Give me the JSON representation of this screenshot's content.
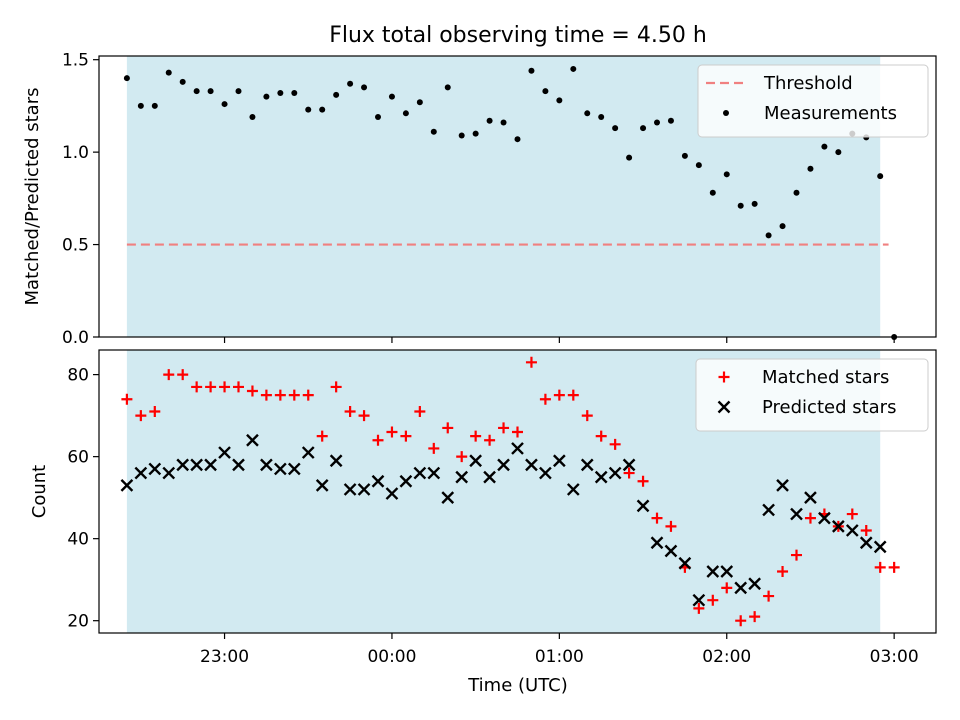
{
  "chart_data": {
    "title": "Flux total observing time = 4.50 h",
    "xlabel": "Time (UTC)",
    "x_unit": "UTC time (HH:MM, night of observation; times after midnight shown as 24:xx)",
    "x_ticks": [
      "23:00",
      "00:00",
      "01:00",
      "02:00",
      "03:00"
    ],
    "x_tick_values": [
      "23:00",
      "24:00",
      "25:00",
      "26:00",
      "27:00"
    ],
    "shaded_span": {
      "start": "22:25",
      "end": "26:55",
      "color": "#add8e6"
    },
    "panels": [
      {
        "type": "scatter",
        "ylabel": "Matched/Predicted stars",
        "ylim": [
          0,
          1.52
        ],
        "yticks": [
          0.0,
          0.5,
          1.0,
          1.5
        ],
        "threshold": {
          "name": "Threshold",
          "value": 0.5,
          "x_range": [
            "22:25",
            "26:58"
          ],
          "color": "#f08080"
        },
        "legend": {
          "position": "top-right",
          "entries": [
            "Threshold",
            "Measurements"
          ]
        },
        "series": [
          {
            "name": "Measurements",
            "color": "#000000",
            "marker": "dot",
            "points": [
              [
                "22:25",
                1.4
              ],
              [
                "22:30",
                1.25
              ],
              [
                "22:35",
                1.25
              ],
              [
                "22:40",
                1.43
              ],
              [
                "22:45",
                1.38
              ],
              [
                "22:50",
                1.33
              ],
              [
                "22:55",
                1.33
              ],
              [
                "23:00",
                1.26
              ],
              [
                "23:05",
                1.33
              ],
              [
                "23:10",
                1.19
              ],
              [
                "23:15",
                1.3
              ],
              [
                "23:20",
                1.32
              ],
              [
                "23:25",
                1.32
              ],
              [
                "23:30",
                1.23
              ],
              [
                "23:35",
                1.23
              ],
              [
                "23:40",
                1.31
              ],
              [
                "23:45",
                1.37
              ],
              [
                "23:50",
                1.35
              ],
              [
                "23:55",
                1.19
              ],
              [
                "24:00",
                1.3
              ],
              [
                "24:05",
                1.21
              ],
              [
                "24:10",
                1.27
              ],
              [
                "24:15",
                1.11
              ],
              [
                "24:20",
                1.35
              ],
              [
                "24:25",
                1.09
              ],
              [
                "24:30",
                1.1
              ],
              [
                "24:35",
                1.17
              ],
              [
                "24:40",
                1.16
              ],
              [
                "24:45",
                1.07
              ],
              [
                "24:50",
                1.44
              ],
              [
                "24:55",
                1.33
              ],
              [
                "25:00",
                1.28
              ],
              [
                "25:05",
                1.45
              ],
              [
                "25:10",
                1.21
              ],
              [
                "25:15",
                1.19
              ],
              [
                "25:20",
                1.13
              ],
              [
                "25:25",
                0.97
              ],
              [
                "25:30",
                1.13
              ],
              [
                "25:35",
                1.16
              ],
              [
                "25:40",
                1.17
              ],
              [
                "25:45",
                0.98
              ],
              [
                "25:50",
                0.93
              ],
              [
                "25:55",
                0.78
              ],
              [
                "26:00",
                0.88
              ],
              [
                "26:05",
                0.71
              ],
              [
                "26:10",
                0.72
              ],
              [
                "26:15",
                0.55
              ],
              [
                "26:20",
                0.6
              ],
              [
                "26:25",
                0.78
              ],
              [
                "26:30",
                0.91
              ],
              [
                "26:35",
                1.03
              ],
              [
                "26:40",
                1.0
              ],
              [
                "26:45",
                1.1
              ],
              [
                "26:50",
                1.08
              ],
              [
                "26:55",
                0.87
              ],
              [
                "27:00",
                0.0
              ]
            ]
          }
        ]
      },
      {
        "type": "scatter",
        "ylabel": "Count",
        "ylim": [
          17,
          86
        ],
        "yticks": [
          20,
          40,
          60,
          80
        ],
        "legend": {
          "position": "top-right",
          "entries": [
            "Matched stars",
            "Predicted stars"
          ]
        },
        "series": [
          {
            "name": "Matched stars",
            "color": "#ff0000",
            "marker": "plus",
            "points": [
              [
                "22:25",
                74
              ],
              [
                "22:30",
                70
              ],
              [
                "22:35",
                71
              ],
              [
                "22:40",
                80
              ],
              [
                "22:45",
                80
              ],
              [
                "22:50",
                77
              ],
              [
                "22:55",
                77
              ],
              [
                "23:00",
                77
              ],
              [
                "23:05",
                77
              ],
              [
                "23:10",
                76
              ],
              [
                "23:15",
                75
              ],
              [
                "23:20",
                75
              ],
              [
                "23:25",
                75
              ],
              [
                "23:30",
                75
              ],
              [
                "23:35",
                65
              ],
              [
                "23:40",
                77
              ],
              [
                "23:45",
                71
              ],
              [
                "23:50",
                70
              ],
              [
                "23:55",
                64
              ],
              [
                "24:00",
                66
              ],
              [
                "24:05",
                65
              ],
              [
                "24:10",
                71
              ],
              [
                "24:15",
                62
              ],
              [
                "24:20",
                67
              ],
              [
                "24:25",
                60
              ],
              [
                "24:30",
                65
              ],
              [
                "24:35",
                64
              ],
              [
                "24:40",
                67
              ],
              [
                "24:45",
                66
              ],
              [
                "24:50",
                83
              ],
              [
                "24:55",
                74
              ],
              [
                "25:00",
                75
              ],
              [
                "25:05",
                75
              ],
              [
                "25:10",
                70
              ],
              [
                "25:15",
                65
              ],
              [
                "25:20",
                63
              ],
              [
                "25:25",
                56
              ],
              [
                "25:30",
                54
              ],
              [
                "25:35",
                45
              ],
              [
                "25:40",
                43
              ],
              [
                "25:45",
                33
              ],
              [
                "25:50",
                23
              ],
              [
                "25:55",
                25
              ],
              [
                "26:00",
                28
              ],
              [
                "26:05",
                20
              ],
              [
                "26:10",
                21
              ],
              [
                "26:15",
                26
              ],
              [
                "26:20",
                32
              ],
              [
                "26:25",
                36
              ],
              [
                "26:30",
                45
              ],
              [
                "26:35",
                46
              ],
              [
                "26:40",
                43
              ],
              [
                "26:45",
                46
              ],
              [
                "26:50",
                42
              ],
              [
                "26:55",
                33
              ],
              [
                "27:00",
                33
              ]
            ]
          },
          {
            "name": "Predicted stars",
            "color": "#000000",
            "marker": "x",
            "points": [
              [
                "22:25",
                53
              ],
              [
                "22:30",
                56
              ],
              [
                "22:35",
                57
              ],
              [
                "22:40",
                56
              ],
              [
                "22:45",
                58
              ],
              [
                "22:50",
                58
              ],
              [
                "22:55",
                58
              ],
              [
                "23:00",
                61
              ],
              [
                "23:05",
                58
              ],
              [
                "23:10",
                64
              ],
              [
                "23:15",
                58
              ],
              [
                "23:20",
                57
              ],
              [
                "23:25",
                57
              ],
              [
                "23:30",
                61
              ],
              [
                "23:35",
                53
              ],
              [
                "23:40",
                59
              ],
              [
                "23:45",
                52
              ],
              [
                "23:50",
                52
              ],
              [
                "23:55",
                54
              ],
              [
                "24:00",
                51
              ],
              [
                "24:05",
                54
              ],
              [
                "24:10",
                56
              ],
              [
                "24:15",
                56
              ],
              [
                "24:20",
                50
              ],
              [
                "24:25",
                55
              ],
              [
                "24:30",
                59
              ],
              [
                "24:35",
                55
              ],
              [
                "24:40",
                58
              ],
              [
                "24:45",
                62
              ],
              [
                "24:50",
                58
              ],
              [
                "24:55",
                56
              ],
              [
                "25:00",
                59
              ],
              [
                "25:05",
                52
              ],
              [
                "25:10",
                58
              ],
              [
                "25:15",
                55
              ],
              [
                "25:20",
                56
              ],
              [
                "25:25",
                58
              ],
              [
                "25:30",
                48
              ],
              [
                "25:35",
                39
              ],
              [
                "25:40",
                37
              ],
              [
                "25:45",
                34
              ],
              [
                "25:50",
                25
              ],
              [
                "25:55",
                32
              ],
              [
                "26:00",
                32
              ],
              [
                "26:05",
                28
              ],
              [
                "26:10",
                29
              ],
              [
                "26:15",
                47
              ],
              [
                "26:20",
                53
              ],
              [
                "26:25",
                46
              ],
              [
                "26:30",
                50
              ],
              [
                "26:35",
                45
              ],
              [
                "26:40",
                43
              ],
              [
                "26:45",
                42
              ],
              [
                "26:50",
                39
              ],
              [
                "26:55",
                38
              ]
            ]
          }
        ]
      }
    ]
  }
}
